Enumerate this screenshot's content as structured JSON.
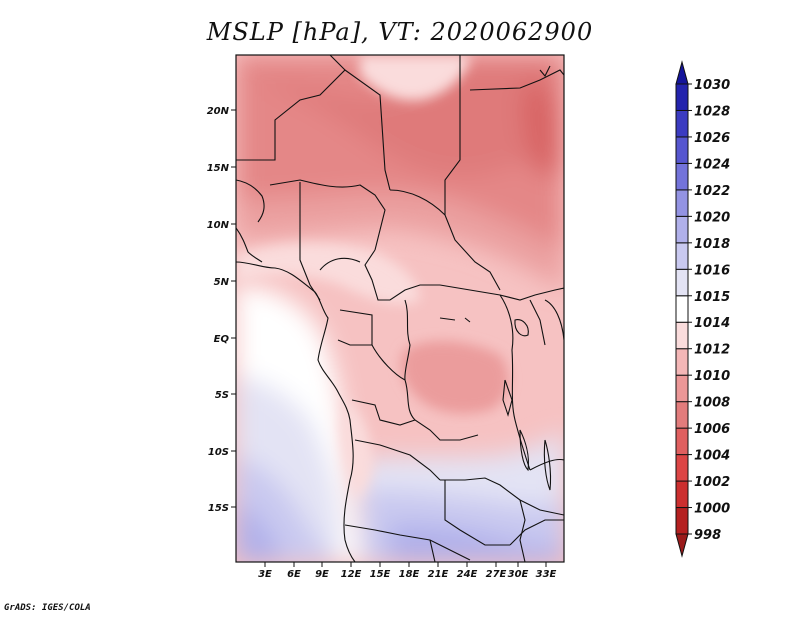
{
  "title": "MSLP [hPa], VT: 2020062900",
  "footer": "GrADS: IGES/COLA",
  "map": {
    "variable": "MSLP",
    "units": "hPa",
    "valid_time": "2020062900",
    "lat_range": [
      -20.5,
      24.8
    ],
    "lon_range": [
      0,
      34
    ],
    "lat_ticks": [
      "20N",
      "15N",
      "10N",
      "5N",
      "EQ",
      "5S",
      "10S",
      "15S"
    ],
    "lon_ticks": [
      "3E",
      "6E",
      "9E",
      "12E",
      "15E",
      "18E",
      "21E",
      "24E",
      "27E",
      "30E",
      "33E"
    ],
    "grid": false
  },
  "colorbar": {
    "levels": [
      "998",
      "1000",
      "1002",
      "1004",
      "1006",
      "1008",
      "1010",
      "1012",
      "1014",
      "1015",
      "1016",
      "1018",
      "1020",
      "1022",
      "1024",
      "1026",
      "1028",
      "1030"
    ],
    "colors": [
      "#9b1b1b",
      "#b52020",
      "#cc2f2f",
      "#dc4545",
      "#e05f5f",
      "#e27c7c",
      "#eb9797",
      "#f4b7b7",
      "#fadcdc",
      "#ffffff",
      "#e3e3f4",
      "#c9c9f0",
      "#b0b0ea",
      "#9393e3",
      "#7373da",
      "#5656cf",
      "#3b3bc1",
      "#2323ad",
      "#14149b"
    ],
    "extends": "both"
  }
}
